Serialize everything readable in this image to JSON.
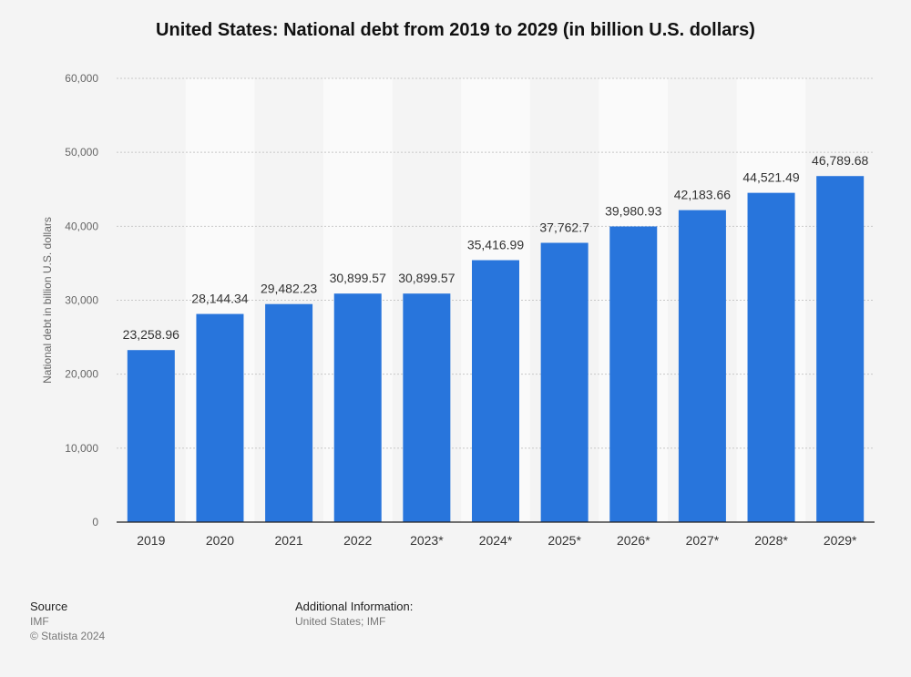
{
  "chart_data": {
    "type": "bar",
    "title": "United States: National debt from 2019 to 2029 (in billion U.S. dollars)",
    "ylabel": "National debt in billion U.S. dollars",
    "xlabel": "",
    "categories": [
      "2019",
      "2020",
      "2021",
      "2022",
      "2023*",
      "2024*",
      "2025*",
      "2026*",
      "2027*",
      "2028*",
      "2029*"
    ],
    "values": [
      23258.96,
      28144.34,
      29482.23,
      30899.57,
      30899.57,
      35416.99,
      37762.7,
      39980.93,
      42183.66,
      44521.49,
      46789.68
    ],
    "value_labels": [
      "23,258.96",
      "28,144.34",
      "29,482.23",
      "30,899.57",
      "30,899.57",
      "35,416.99",
      "37,762.7",
      "39,980.93",
      "42,183.66",
      "44,521.49",
      "46,789.68"
    ],
    "ylim": [
      0,
      60000
    ],
    "yticks": [
      0,
      10000,
      20000,
      30000,
      40000,
      50000,
      60000
    ],
    "ytick_labels": [
      "0",
      "10,000",
      "20,000",
      "30,000",
      "40,000",
      "50,000",
      "60,000"
    ],
    "grid": true,
    "bar_color": "#2875dc"
  },
  "footer": {
    "source_heading": "Source",
    "source": "IMF",
    "copyright": "© Statista 2024",
    "additional_heading": "Additional Information:",
    "additional": "United States; IMF"
  }
}
